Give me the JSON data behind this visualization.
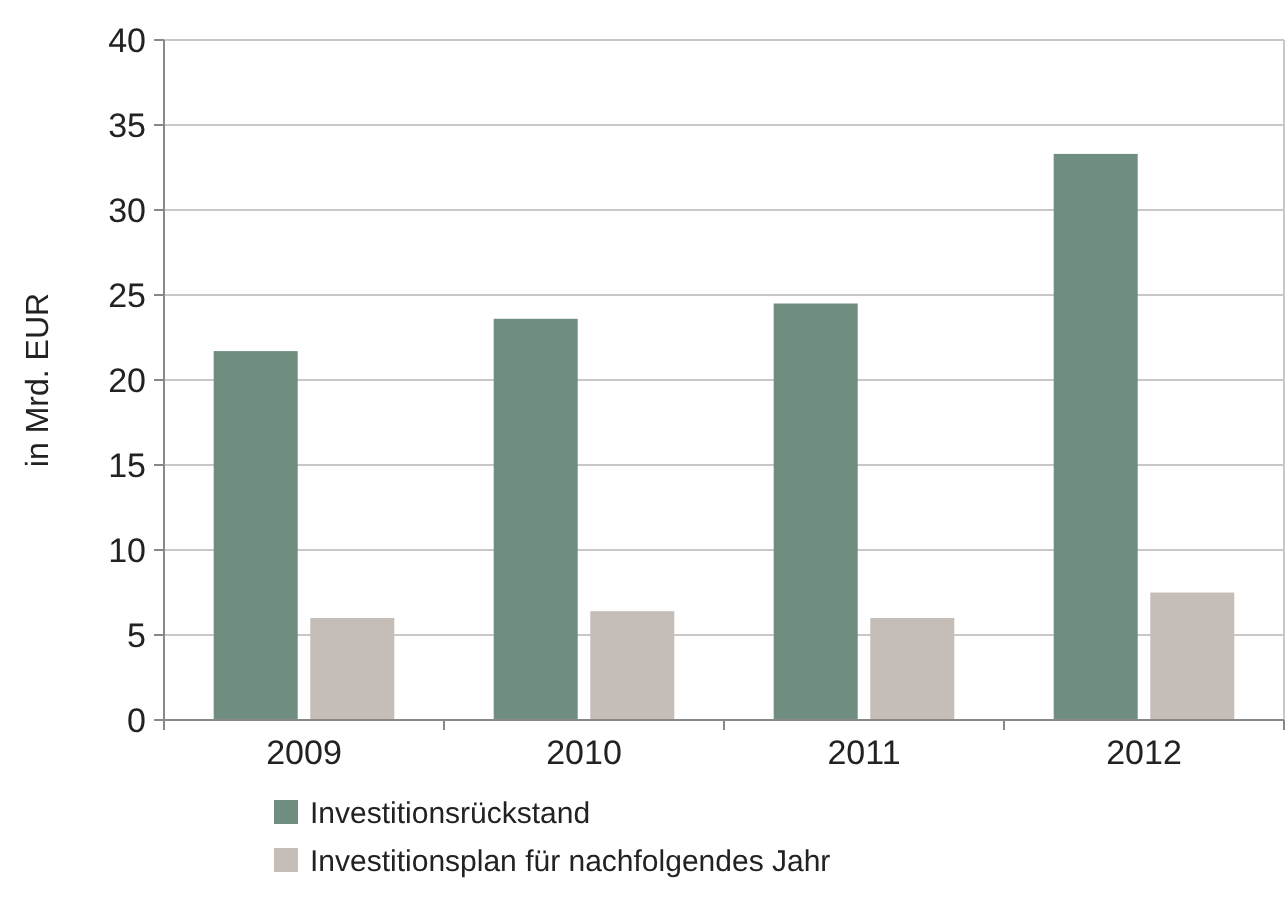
{
  "chart_data": {
    "type": "bar",
    "ylabel": "in Mrd. EUR",
    "categories": [
      "2009",
      "2010",
      "2011",
      "2012"
    ],
    "series": [
      {
        "name": "Investitionsrückstand",
        "color": "#6f8e80",
        "values": [
          21.7,
          23.6,
          24.5,
          33.3
        ]
      },
      {
        "name": "Investitionsplan für nachfolgendes Jahr",
        "color": "#c5bdb7",
        "values": [
          6.0,
          6.4,
          6.0,
          7.5
        ]
      }
    ],
    "ylim": [
      0,
      40
    ],
    "yticks": [
      0,
      5,
      10,
      15,
      20,
      25,
      30,
      35,
      40
    ],
    "grid": "y",
    "legend": "bottom"
  }
}
